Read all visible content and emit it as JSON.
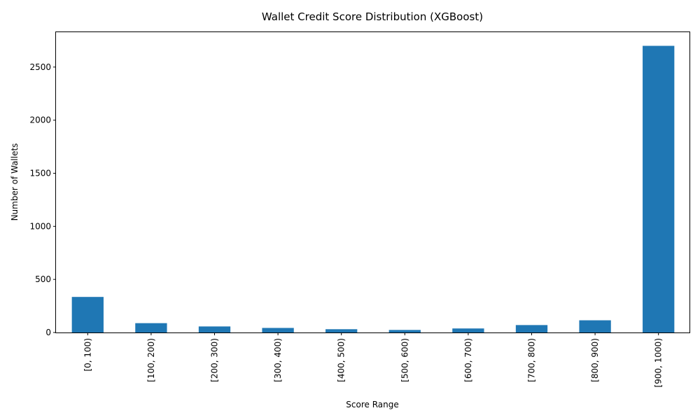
{
  "chart_data": {
    "type": "bar",
    "title": "Wallet Credit Score Distribution (XGBoost)",
    "xlabel": "Score Range",
    "ylabel": "Number of Wallets",
    "categories": [
      "[0, 100)",
      "[100, 200)",
      "[200, 300)",
      "[300, 400)",
      "[400, 500)",
      "[500, 600)",
      "[600, 700)",
      "[700, 800)",
      "[800, 900)",
      "[900, 1000)"
    ],
    "values": [
      335,
      88,
      57,
      43,
      31,
      24,
      38,
      70,
      115,
      2700
    ],
    "ylim": [
      0,
      2835
    ],
    "yticks": [
      0,
      500,
      1000,
      1500,
      2000,
      2500
    ],
    "grid": false,
    "bar_color": "#1f77b4"
  }
}
